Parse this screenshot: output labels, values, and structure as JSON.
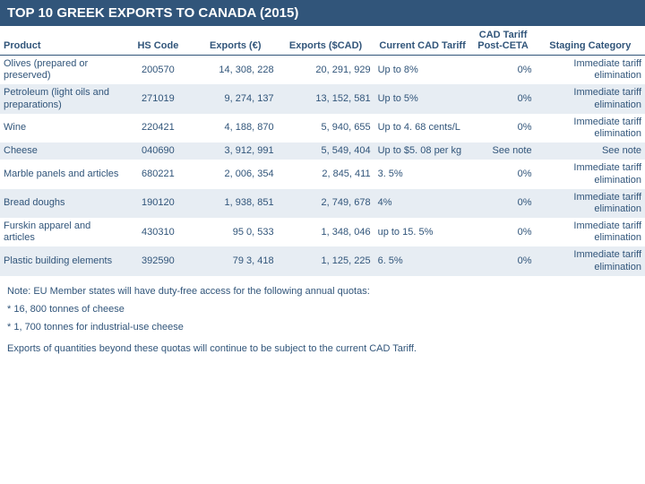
{
  "title": "TOP 10 GREEK EXPORTS TO CANADA (2015)",
  "headers": {
    "product": "Product",
    "hs": "HS Code",
    "eur": "Exports (€)",
    "cad": "Exports ($CAD)",
    "tariff": "Current CAD Tariff",
    "post": "CAD Tariff Post-CETA",
    "stage": "Staging Category"
  },
  "rows": [
    {
      "product": "Olives (prepared or preserved)",
      "hs": "200570",
      "eur": "14, 308, 228",
      "cad": "20, 291, 929",
      "tariff": "Up to 8%",
      "post": "0%",
      "stage": "Immediate tariff elimination"
    },
    {
      "product": "Petroleum (light oils and preparations)",
      "hs": "271019",
      "eur": "9, 274, 137",
      "cad": "13, 152, 581",
      "tariff": "Up to 5%",
      "post": "0%",
      "stage": "Immediate tariff elimination"
    },
    {
      "product": "Wine",
      "hs": "220421",
      "eur": "4, 188, 870",
      "cad": "5, 940, 655",
      "tariff": "Up to 4. 68 cents/L",
      "post": "0%",
      "stage": "Immediate tariff elimination"
    },
    {
      "product": "Cheese",
      "hs": "040690",
      "eur": "3, 912, 991",
      "cad": "5, 549, 404",
      "tariff": "Up to $5. 08 per kg",
      "post": "See note",
      "stage": "See note"
    },
    {
      "product": "Marble panels and articles",
      "hs": "680221",
      "eur": "2, 006, 354",
      "cad": "2, 845, 411",
      "tariff": "3. 5%",
      "post": "0%",
      "stage": "Immediate tariff elimination"
    },
    {
      "product": "Bread doughs",
      "hs": "190120",
      "eur": "1, 938, 851",
      "cad": "2, 749, 678",
      "tariff": "4%",
      "post": "0%",
      "stage": "Immediate tariff elimination"
    },
    {
      "product": "Furskin apparel and articles",
      "hs": "430310",
      "eur": "95 0, 533",
      "cad": "1, 348, 046",
      "tariff": "up to 15. 5%",
      "post": "0%",
      "stage": "Immediate tariff elimination"
    },
    {
      "product": "Plastic building elements",
      "hs": "392590",
      "eur": "79 3, 418",
      "cad": "1, 125, 225",
      "tariff": "6. 5%",
      "post": "0%",
      "stage": "Immediate tariff elimination"
    }
  ],
  "notes": {
    "line1": "Note: EU Member states will have duty-free access for the following annual quotas:",
    "line2": " * 16, 800 tonnes of cheese",
    "line3": " * 1, 700 tonnes for industrial-use cheese",
    "line4": "Exports of quantities beyond these quotas will continue to be subject to the current CAD Tariff."
  }
}
